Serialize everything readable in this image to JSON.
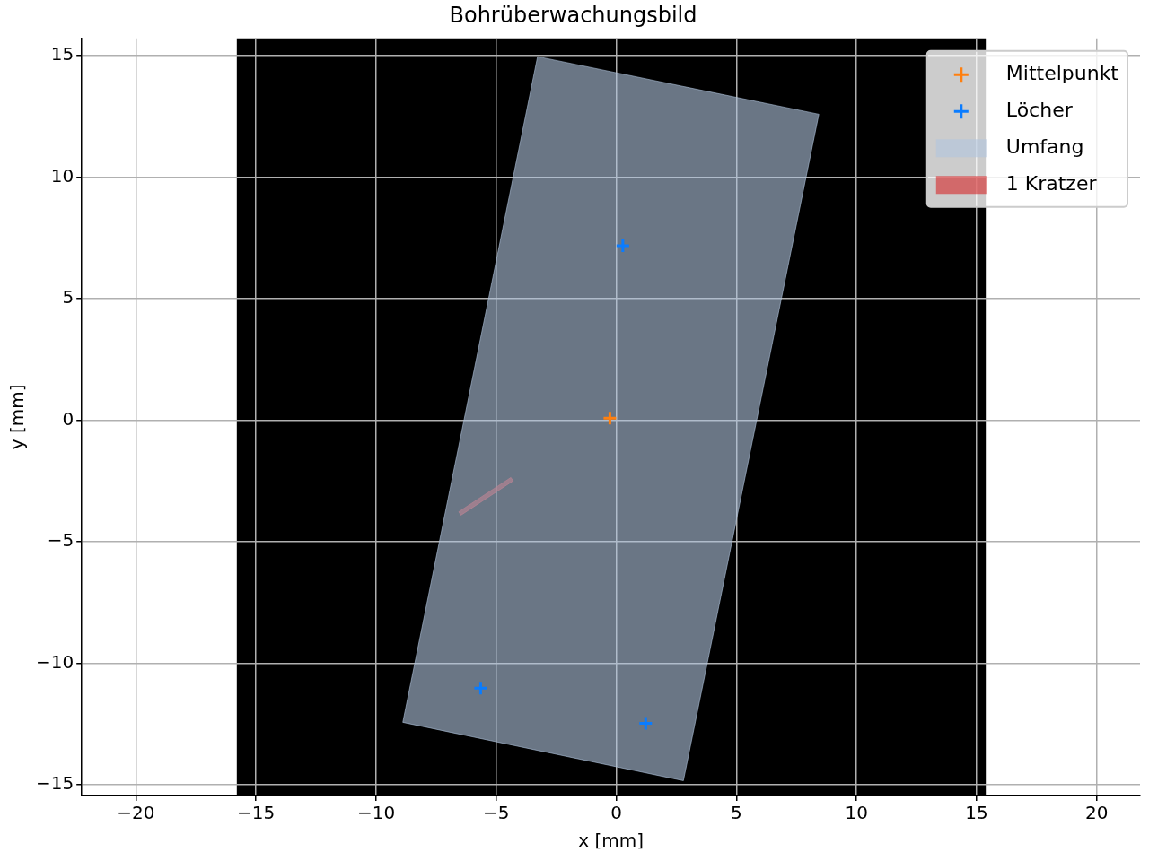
{
  "chart_data": {
    "type": "scatter",
    "title": "Bohrüberwachungsbild",
    "xlabel": "x [mm]",
    "ylabel": "y [mm]",
    "xlim": [
      -22.25,
      21.8
    ],
    "ylim": [
      -15.44,
      15.7
    ],
    "xticks": [
      {
        "value": -20,
        "label": "−20"
      },
      {
        "value": -15,
        "label": "−15"
      },
      {
        "value": -10,
        "label": "−10"
      },
      {
        "value": -5,
        "label": "−5"
      },
      0,
      5,
      10,
      15,
      20
    ],
    "yticks": [
      {
        "value": -15,
        "label": "−15"
      },
      {
        "value": -10,
        "label": "−10"
      },
      {
        "value": -5,
        "label": "−5"
      },
      0,
      5,
      10,
      15
    ],
    "grid": true,
    "legend": "top right",
    "bands": [
      {
        "axis": "x",
        "from": -15.8,
        "to": 15.38,
        "color": "#000000"
      }
    ],
    "series": [
      {
        "name": "Mittelpunkt",
        "color": "#ff7f0e",
        "marker": "cross",
        "x": [
          -0.27
        ],
        "values": [
          0.08
        ]
      },
      {
        "name": "Löcher",
        "color": "#0a7cff",
        "marker": "cross",
        "x": [
          0.27,
          -5.65,
          1.22
        ],
        "values": [
          7.17,
          -11.02,
          -12.47
        ]
      },
      {
        "name": "Umfang",
        "type": "area",
        "color": "#b0c4de",
        "x": [
          -3.28,
          8.43,
          2.79,
          -8.89,
          -3.28
        ],
        "values": [
          14.95,
          12.58,
          -14.83,
          -12.43,
          14.95
        ]
      },
      {
        "name": "1 Kratzer",
        "type": "area",
        "color": "#d62728",
        "x": [
          -6.56,
          -4.39,
          -4.3,
          -6.47,
          -6.56
        ],
        "values": [
          -3.77,
          -2.36,
          -2.5,
          -3.91,
          -3.77
        ]
      }
    ]
  }
}
